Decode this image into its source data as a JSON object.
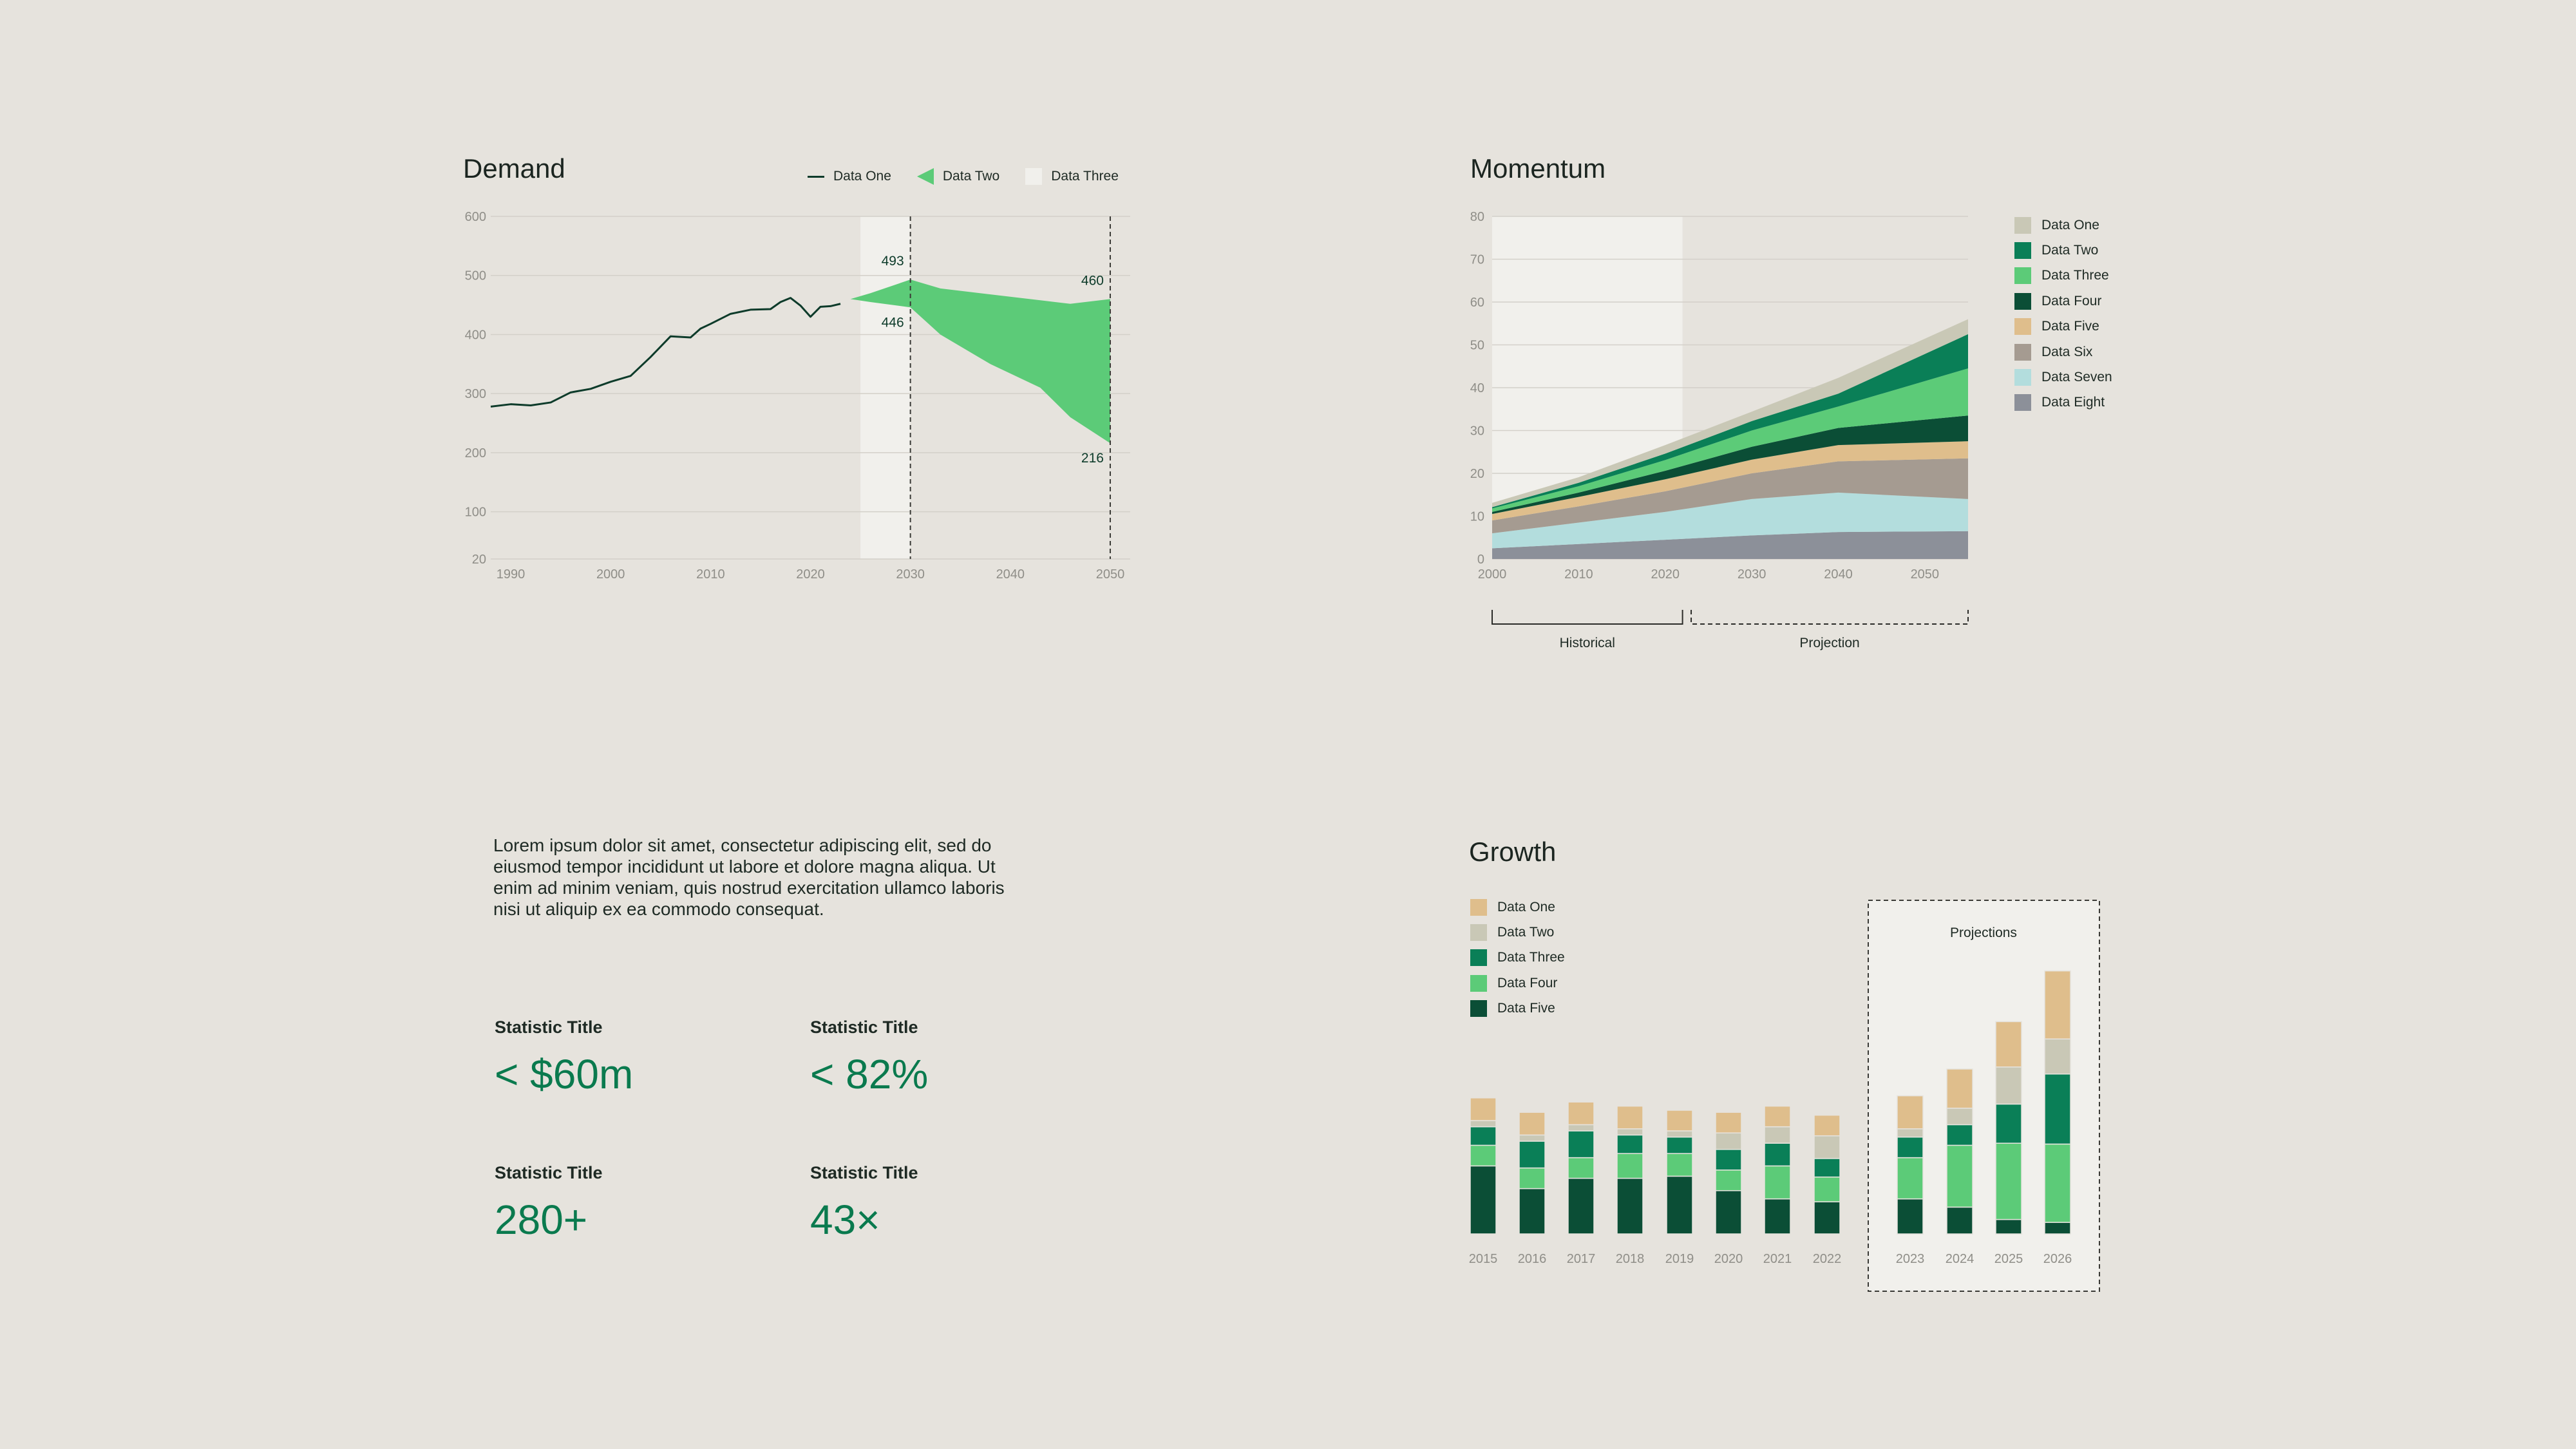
{
  "colors": {
    "background": "#E6E3DD",
    "data_one": "#C9C8B6",
    "data_two": "#0A7F57",
    "data_three": "#5CCB78",
    "data_four": "#0B4E36",
    "data_five": "#DFBE8C",
    "data_six": "#A59B91",
    "data_seven": "#B3DDDD",
    "data_eight": "#8C9099",
    "projection_band": "#F1F0EC",
    "dark_line": "#0D3B2A",
    "accent_text": "#0A7A4E"
  },
  "demand": {
    "title": "Demand",
    "legend": [
      {
        "label": "Data One",
        "icon": "line-icon",
        "color": "#0D3B2A"
      },
      {
        "label": "Data Two",
        "icon": "triangle-icon",
        "color": "#5CCB78"
      },
      {
        "label": "Data Three",
        "icon": "square-icon",
        "color": "#F1F0EC"
      }
    ]
  },
  "momentum": {
    "title": "Momentum",
    "legend": [
      {
        "label": "Data One",
        "color": "#C9C8B6"
      },
      {
        "label": "Data Two",
        "color": "#0A7F57"
      },
      {
        "label": "Data Three",
        "color": "#5CCB78"
      },
      {
        "label": "Data Four",
        "color": "#0B4E36"
      },
      {
        "label": "Data Five",
        "color": "#DFBE8C"
      },
      {
        "label": "Data Six",
        "color": "#A59B91"
      },
      {
        "label": "Data Seven",
        "color": "#B3DDDD"
      },
      {
        "label": "Data Eight",
        "color": "#8C9099"
      }
    ],
    "brackets": {
      "historical": "Historical",
      "projection": "Projection"
    }
  },
  "growth": {
    "title": "Growth",
    "legend": [
      {
        "label": "Data One",
        "color": "#DFBE8C"
      },
      {
        "label": "Data Two",
        "color": "#C9C8B6"
      },
      {
        "label": "Data Three",
        "color": "#0A7F57"
      },
      {
        "label": "Data Four",
        "color": "#5CCB78"
      },
      {
        "label": "Data Five",
        "color": "#0B4E36"
      }
    ],
    "projections_label": "Projections"
  },
  "text": {
    "paragraph": "Lorem ipsum dolor sit amet, consectetur adipiscing elit, sed do eiusmod tempor incididunt ut labore et dolore magna aliqua. Ut enim ad minim veniam, quis nostrud exercitation ullamco laboris nisi ut aliquip ex ea commodo consequat."
  },
  "stats": [
    {
      "title": "Statistic Title",
      "value": "< $60m"
    },
    {
      "title": "Statistic Title",
      "value": "< 82%"
    },
    {
      "title": "Statistic Title",
      "value": "280+"
    },
    {
      "title": "Statistic Title",
      "value": "43×"
    }
  ],
  "chart_data": [
    {
      "id": "demand",
      "type": "line",
      "title": "Demand",
      "xlim": [
        1988,
        2052
      ],
      "ylim": [
        20,
        600
      ],
      "yticks": [
        20,
        100,
        200,
        300,
        400,
        500,
        600
      ],
      "xticks": [
        1990,
        2000,
        2010,
        2020,
        2030,
        2040,
        2050
      ],
      "projection_band": [
        2025,
        2030
      ],
      "reference_lines": [
        2030,
        2050
      ],
      "series": [
        {
          "name": "Data One",
          "type": "line",
          "x": [
            1988,
            1990,
            1992,
            1994,
            1996,
            1998,
            2000,
            2002,
            2004,
            2006,
            2008,
            2009,
            2010,
            2012,
            2014,
            2016,
            2017,
            2018,
            2019,
            2020,
            2021,
            2022,
            2023
          ],
          "y": [
            278,
            282,
            280,
            285,
            302,
            308,
            320,
            330,
            362,
            397,
            395,
            410,
            418,
            435,
            442,
            443,
            455,
            462,
            449,
            430,
            447,
            448,
            452
          ]
        },
        {
          "name": "Data Two",
          "type": "range",
          "x": [
            2024,
            2026,
            2030,
            2033,
            2038,
            2043,
            2046,
            2050
          ],
          "upper": [
            460,
            470,
            493,
            478,
            468,
            458,
            452,
            460
          ],
          "lower": [
            460,
            455,
            446,
            400,
            350,
            310,
            260,
            216
          ]
        }
      ],
      "annotations": [
        {
          "x": 2030,
          "y": 493,
          "label": "493"
        },
        {
          "x": 2030,
          "y": 446,
          "label": "446"
        },
        {
          "x": 2050,
          "y": 460,
          "label": "460"
        },
        {
          "x": 2050,
          "y": 216,
          "label": "216"
        }
      ]
    },
    {
      "id": "momentum",
      "type": "area",
      "title": "Momentum",
      "xlim": [
        2000,
        2055
      ],
      "ylim": [
        0,
        80
      ],
      "yticks": [
        0,
        10,
        20,
        30,
        40,
        50,
        60,
        70,
        80
      ],
      "xticks": [
        2000,
        2010,
        2020,
        2030,
        2040,
        2050
      ],
      "historical_range": [
        2000,
        2022
      ],
      "projection_range": [
        2023,
        2055
      ],
      "x": [
        2000,
        2010,
        2020,
        2030,
        2040,
        2055
      ],
      "series": [
        {
          "name": "Data Eight",
          "values": [
            2.5,
            3.5,
            4.5,
            5.5,
            6.3,
            6.5
          ]
        },
        {
          "name": "Data Seven",
          "values": [
            3.5,
            5,
            6.5,
            8.5,
            9.2,
            7.5
          ]
        },
        {
          "name": "Data Six",
          "values": [
            3,
            3.8,
            4.8,
            6,
            7.3,
            9.5
          ]
        },
        {
          "name": "Data Five",
          "values": [
            1.5,
            2.2,
            2.8,
            3.2,
            3.8,
            4
          ]
        },
        {
          "name": "Data Four",
          "values": [
            0.5,
            1,
            2,
            3,
            4,
            6
          ]
        },
        {
          "name": "Data Three",
          "values": [
            0.8,
            1.5,
            2.5,
            3.8,
            5,
            11
          ]
        },
        {
          "name": "Data Two",
          "values": [
            0.3,
            0.8,
            1.5,
            2.2,
            3,
            8
          ]
        },
        {
          "name": "Data One",
          "values": [
            1,
            1.3,
            2,
            2.2,
            3.7,
            3.5
          ]
        }
      ]
    },
    {
      "id": "growth",
      "type": "bar",
      "title": "Growth",
      "categories": [
        "2015",
        "2016",
        "2017",
        "2018",
        "2019",
        "2020",
        "2021",
        "2022",
        "2023",
        "2024",
        "2025",
        "2026"
      ],
      "ylim": [
        0,
        65
      ],
      "projection_categories": [
        "2023",
        "2024",
        "2025",
        "2026"
      ],
      "series": [
        {
          "name": "Data Five",
          "values": [
            16.5,
            11,
            13.5,
            13.5,
            14,
            10.5,
            8.5,
            7.8,
            8.5,
            6.5,
            3.5,
            2.8
          ]
        },
        {
          "name": "Data Four",
          "values": [
            5,
            5,
            5,
            6,
            5.5,
            5,
            8,
            6,
            10,
            15,
            18.5,
            19
          ]
        },
        {
          "name": "Data Three",
          "values": [
            4.5,
            6.5,
            6.5,
            4.5,
            4,
            5,
            5.5,
            4.5,
            5,
            5,
            9.5,
            17
          ]
        },
        {
          "name": "Data Two",
          "values": [
            1.5,
            1.5,
            1.5,
            1.5,
            1.5,
            4,
            4,
            5.5,
            2,
            4,
            9,
            8.5
          ]
        },
        {
          "name": "Data One",
          "values": [
            5.5,
            5.5,
            5.5,
            5.5,
            5,
            5,
            5,
            5,
            8,
            9.5,
            11,
            16.5
          ]
        }
      ]
    }
  ]
}
